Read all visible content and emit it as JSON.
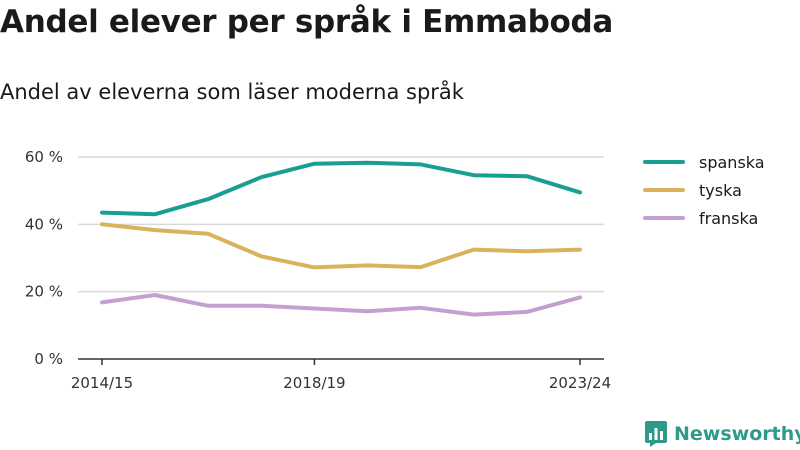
{
  "header": {
    "title": "Andel elever per språk i Emmaboda",
    "subtitle": "Andel av eleverna som läser moderna språk"
  },
  "brand": {
    "name": "Newsworthy",
    "color": "#2f9a8c"
  },
  "chart_data": {
    "type": "line",
    "x": [
      "2014/15",
      "2015/16",
      "2016/17",
      "2017/18",
      "2018/19",
      "2019/20",
      "2020/21",
      "2021/22",
      "2022/23",
      "2023/24"
    ],
    "x_tick_labels": [
      "2014/15",
      "2018/19",
      "2023/24"
    ],
    "y_ticks": [
      0,
      20,
      40,
      60
    ],
    "y_tick_labels": [
      "0 %",
      "20 %",
      "40 %",
      "60 %"
    ],
    "ylim": [
      0,
      60
    ],
    "grid": true,
    "legend_position": "right",
    "series": [
      {
        "name": "spanska",
        "color": "#1a9e92",
        "values": [
          43.5,
          43,
          47.5,
          54,
          58,
          58.3,
          57.8,
          54.6,
          54.3,
          49.5
        ]
      },
      {
        "name": "tyska",
        "color": "#d9b25a",
        "values": [
          40,
          38.3,
          37.2,
          30.5,
          27.2,
          27.8,
          27.3,
          32.5,
          32,
          32.5
        ]
      },
      {
        "name": "franska",
        "color": "#c3a0d2",
        "values": [
          16.8,
          19,
          15.8,
          15.8,
          15,
          14.2,
          15.2,
          13.2,
          14,
          18.3
        ]
      }
    ]
  }
}
